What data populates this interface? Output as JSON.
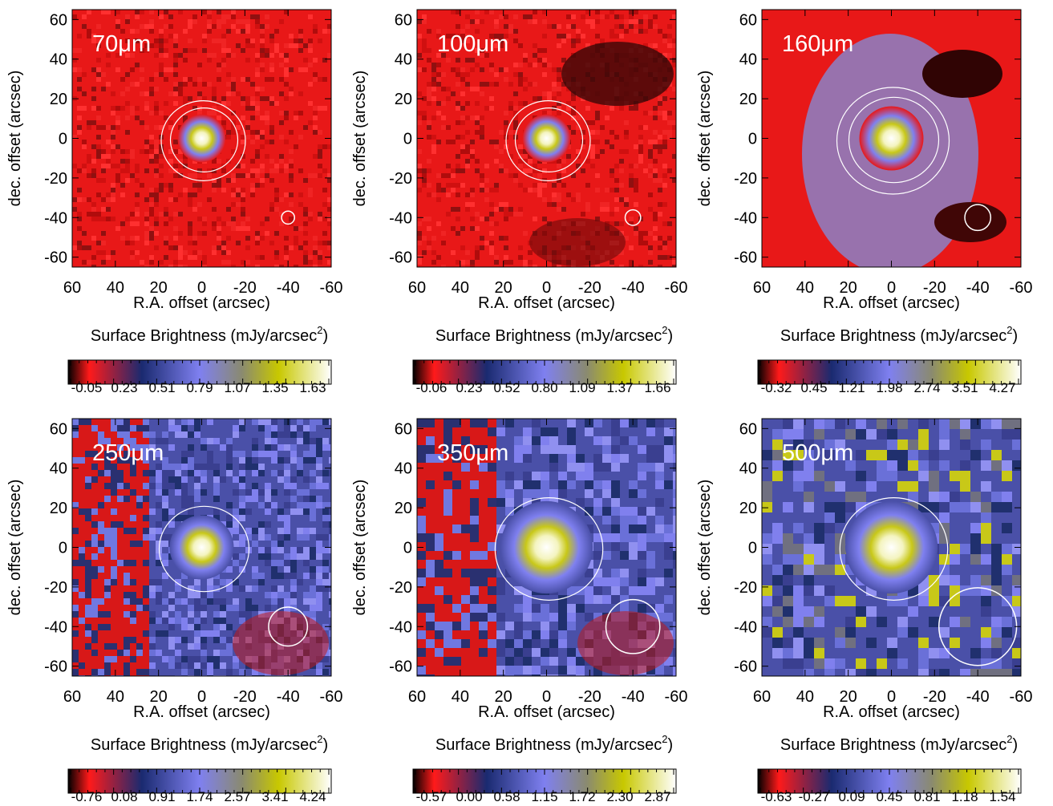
{
  "chart_data": [
    {
      "type": "heatmap",
      "band_label": "70μm",
      "xlabel": "R.A. offset (arcsec)",
      "ylabel": "dec. offset (arcsec)",
      "xlim": [
        60,
        -60
      ],
      "ylim": [
        -65,
        65
      ],
      "x_ticks": [
        "60",
        "40",
        "20",
        "0",
        "-20",
        "-40",
        "-60"
      ],
      "y_ticks": [
        "60",
        "40",
        "20",
        "0",
        "-20",
        "-40",
        "-60"
      ],
      "colorbar_label": "Surface Brightness (mJy/arcsec",
      "colorbar_label_sup": "2",
      "colorbar_label_end": ")",
      "colorbar_ticks": [
        "-0.05",
        "0.23",
        "0.51",
        "0.79",
        "1.07",
        "1.35",
        "1.63"
      ],
      "colorbar_range": [
        -0.05,
        1.63
      ],
      "background": "red",
      "source_size": "compact",
      "beam_radius_arcsec": 3
    },
    {
      "type": "heatmap",
      "band_label": "100μm",
      "xlabel": "R.A. offset (arcsec)",
      "ylabel": "dec. offset (arcsec)",
      "xlim": [
        60,
        -60
      ],
      "ylim": [
        -65,
        65
      ],
      "x_ticks": [
        "60",
        "40",
        "20",
        "0",
        "-20",
        "-40",
        "-60"
      ],
      "y_ticks": [
        "60",
        "40",
        "20",
        "0",
        "-20",
        "-40",
        "-60"
      ],
      "colorbar_label": "Surface Brightness (mJy/arcsec",
      "colorbar_label_sup": "2",
      "colorbar_label_end": ")",
      "colorbar_ticks": [
        "-0.06",
        "0.23",
        "0.52",
        "0.80",
        "1.09",
        "1.37",
        "1.66"
      ],
      "colorbar_range": [
        -0.06,
        1.66
      ],
      "background": "red",
      "source_size": "compact",
      "beam_radius_arcsec": 3.6
    },
    {
      "type": "heatmap",
      "band_label": "160μm",
      "xlabel": "R.A. offset (arcsec)",
      "ylabel": "dec. offset (arcsec)",
      "xlim": [
        60,
        -60
      ],
      "ylim": [
        -65,
        65
      ],
      "x_ticks": [
        "60",
        "40",
        "20",
        "0",
        "-20",
        "-40",
        "-60"
      ],
      "y_ticks": [
        "60",
        "40",
        "20",
        "0",
        "-20",
        "-40",
        "-60"
      ],
      "colorbar_label": "Surface Brightness (mJy/arcsec",
      "colorbar_label_sup": "2",
      "colorbar_label_end": ")",
      "colorbar_ticks": [
        "-0.32",
        "0.45",
        "1.21",
        "1.98",
        "2.74",
        "3.51",
        "4.27"
      ],
      "colorbar_range": [
        -0.32,
        4.27
      ],
      "background": "red",
      "source_size": "medium",
      "beam_radius_arcsec": 6
    },
    {
      "type": "heatmap",
      "band_label": "250μm",
      "xlabel": "R.A. offset (arcsec)",
      "ylabel": "dec. offset (arcsec)",
      "xlim": [
        60,
        -60
      ],
      "ylim": [
        -65,
        65
      ],
      "x_ticks": [
        "60",
        "40",
        "20",
        "0",
        "-20",
        "-40",
        "-60"
      ],
      "y_ticks": [
        "60",
        "40",
        "20",
        "0",
        "-20",
        "-40",
        "-60"
      ],
      "colorbar_label": "Surface Brightness (mJy/arcsec",
      "colorbar_label_sup": "2",
      "colorbar_label_end": ")",
      "colorbar_ticks": [
        "-0.76",
        "0.08",
        "0.91",
        "1.74",
        "2.57",
        "3.41",
        "4.24"
      ],
      "colorbar_range": [
        -0.76,
        4.24
      ],
      "background": "blue",
      "source_size": "medium",
      "beam_radius_arcsec": 9
    },
    {
      "type": "heatmap",
      "band_label": "350μm",
      "xlabel": "R.A. offset (arcsec)",
      "ylabel": "dec. offset (arcsec)",
      "xlim": [
        60,
        -60
      ],
      "ylim": [
        -65,
        65
      ],
      "x_ticks": [
        "60",
        "40",
        "20",
        "0",
        "-20",
        "-40",
        "-60"
      ],
      "y_ticks": [
        "60",
        "40",
        "20",
        "0",
        "-20",
        "-40",
        "-60"
      ],
      "colorbar_label": "Surface Brightness (mJy/arcsec",
      "colorbar_label_sup": "2",
      "colorbar_label_end": ")",
      "colorbar_ticks": [
        "-0.57",
        "0.00",
        "0.58",
        "1.15",
        "1.72",
        "2.30",
        "2.87"
      ],
      "colorbar_range": [
        -0.57,
        2.87
      ],
      "background": "blue",
      "source_size": "large",
      "beam_radius_arcsec": 12.5
    },
    {
      "type": "heatmap",
      "band_label": "500μm",
      "xlabel": "R.A. offset (arcsec)",
      "ylabel": "dec. offset (arcsec)",
      "xlim": [
        60,
        -60
      ],
      "ylim": [
        -65,
        65
      ],
      "x_ticks": [
        "60",
        "40",
        "20",
        "0",
        "-20",
        "-40",
        "-60"
      ],
      "y_ticks": [
        "60",
        "40",
        "20",
        "0",
        "-20",
        "-40",
        "-60"
      ],
      "colorbar_label": "Surface Brightness (mJy/arcsec",
      "colorbar_label_sup": "2",
      "colorbar_label_end": ")",
      "colorbar_ticks": [
        "-0.63",
        "-0.27",
        "0.09",
        "0.45",
        "0.81",
        "1.18",
        "1.54"
      ],
      "colorbar_range": [
        -0.63,
        1.54
      ],
      "background": "blue",
      "source_size": "large",
      "beam_radius_arcsec": 18
    }
  ],
  "colormap": [
    "#000000",
    "#ff1a1a",
    "#1a2a70",
    "#7f80f0",
    "#8a8a70",
    "#c8c800",
    "#ffffff"
  ]
}
